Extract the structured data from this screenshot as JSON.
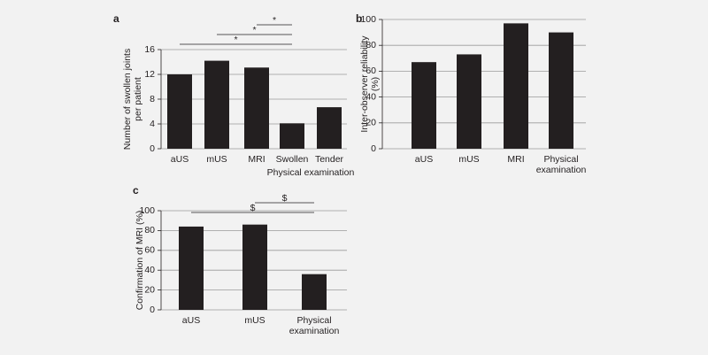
{
  "chart_data": [
    {
      "type": "bar",
      "panel": "a",
      "ylabel": "Number of swollen joints per patient",
      "categories": [
        "aUS",
        "mUS",
        "MRI",
        "Swollen",
        "Tender"
      ],
      "values": [
        12,
        14.2,
        13.1,
        4.1,
        6.7
      ],
      "group_label": "Physical examination",
      "color": "#231f20",
      "ylim": [
        0,
        16
      ],
      "yticks": [
        0,
        4,
        8,
        12,
        16
      ],
      "grid": true,
      "comparisons": [
        {
          "from": "aUS",
          "to": "Swollen",
          "label": "*"
        },
        {
          "from": "mUS",
          "to": "Swollen",
          "label": "*"
        },
        {
          "from": "MRI",
          "to": "Swollen",
          "label": "*"
        }
      ]
    },
    {
      "type": "bar",
      "panel": "b",
      "ylabel": "Inter-observer reliability (%)",
      "categories": [
        "aUS",
        "mUS",
        "MRI",
        "Physical examination"
      ],
      "values": [
        67,
        73,
        97,
        90
      ],
      "color": "#231f20",
      "ylim": [
        0,
        100
      ],
      "yticks": [
        0,
        20,
        40,
        60,
        80,
        100
      ],
      "grid": true
    },
    {
      "type": "bar",
      "panel": "c",
      "ylabel": "Confirmation of MRI (%)",
      "categories": [
        "aUS",
        "mUS",
        "Physical examination"
      ],
      "values": [
        84,
        86,
        36
      ],
      "color": "#231f20",
      "ylim": [
        0,
        100
      ],
      "yticks": [
        0,
        20,
        40,
        60,
        80,
        100
      ],
      "grid": true,
      "comparisons": [
        {
          "from": "aUS",
          "to": "Physical examination",
          "label": "$"
        },
        {
          "from": "mUS",
          "to": "Physical examination",
          "label": "$"
        }
      ]
    }
  ]
}
